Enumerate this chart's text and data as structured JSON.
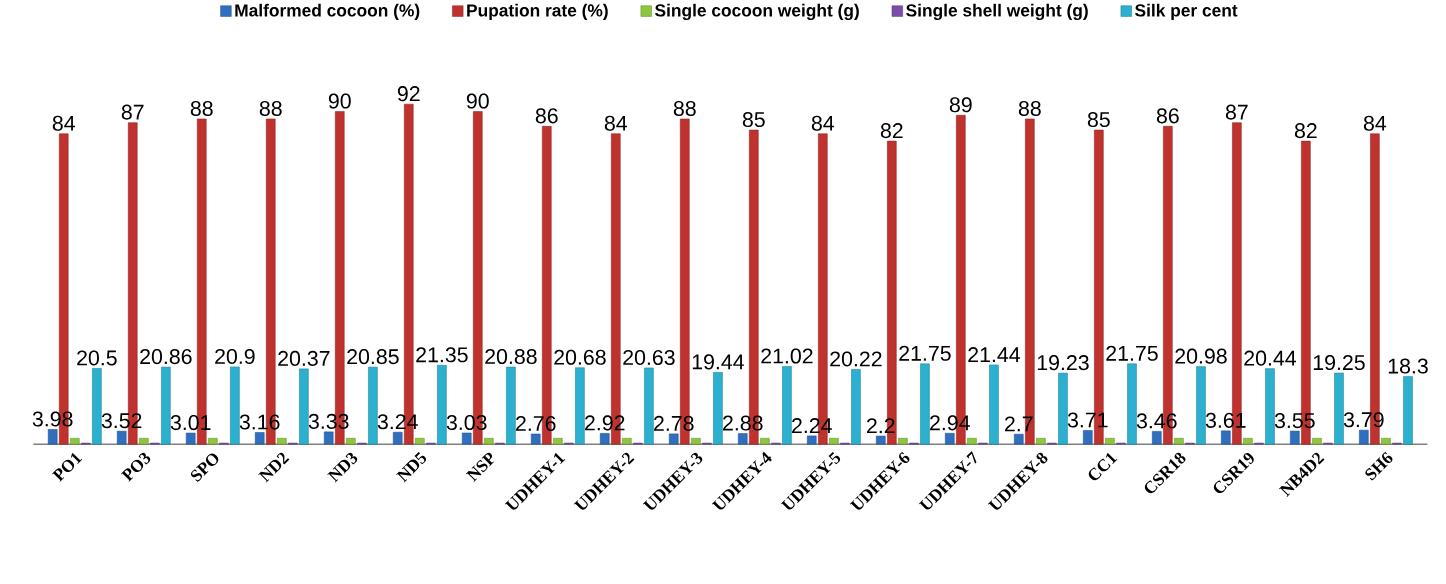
{
  "chart_data": {
    "type": "bar",
    "categories": [
      "PO1",
      "PO3",
      "SPO",
      "ND2",
      "ND3",
      "ND5",
      "NSP",
      "UDHEY-1",
      "UDHEY-2",
      "UDHEY-3",
      "UDHEY-4",
      "UDHEY-5",
      "UDHEY-6",
      "UDHEY-7",
      "UDHEY-8",
      "CC1",
      "CSR18",
      "CSR19",
      "NB4D2",
      "SH6"
    ],
    "series": [
      {
        "name": "Malformed cocoon (%)",
        "color": "#2f6fc0",
        "values": [
          3.98,
          3.52,
          3.01,
          3.16,
          3.33,
          3.24,
          3.03,
          2.76,
          2.92,
          2.78,
          2.88,
          2.24,
          2.2,
          2.94,
          2.7,
          3.71,
          3.46,
          3.61,
          3.55,
          3.79
        ],
        "value_labels": [
          "3.98",
          "3.52",
          "3.01",
          "3.16",
          "3.33",
          "3.24",
          "3.03",
          "2.76",
          "2.92",
          "2.78",
          "2.88",
          "2.24",
          "2.2",
          "2.94",
          "2.7",
          "3.71",
          "3.46",
          "3.61",
          "3.55",
          "3.79"
        ]
      },
      {
        "name": "Pupation rate (%)",
        "color": "#c0322e",
        "values": [
          84,
          87,
          88,
          88,
          90,
          92,
          90,
          86,
          84,
          88,
          85,
          84,
          82,
          89,
          88,
          85,
          86,
          87,
          82,
          84
        ],
        "value_labels": [
          "84",
          "87",
          "88",
          "88",
          "90",
          "92",
          "90",
          "86",
          "84",
          "88",
          "85",
          "84",
          "82",
          "89",
          "88",
          "85",
          "86",
          "87",
          "82",
          "84"
        ]
      },
      {
        "name": "Single cocoon weight (g)",
        "color": "#8dc63f",
        "values": [
          1.6,
          1.6,
          1.6,
          1.6,
          1.6,
          1.6,
          1.6,
          1.6,
          1.6,
          1.6,
          1.6,
          1.6,
          1.6,
          1.6,
          1.6,
          1.6,
          1.6,
          1.6,
          1.6,
          1.6
        ]
      },
      {
        "name": "Single shell weight (g)",
        "color": "#7b4fa8",
        "values": [
          0.3,
          0.3,
          0.3,
          0.3,
          0.3,
          0.3,
          0.3,
          0.3,
          0.3,
          0.3,
          0.3,
          0.3,
          0.3,
          0.3,
          0.3,
          0.3,
          0.3,
          0.3,
          0.3,
          0.3
        ]
      },
      {
        "name": "Silk per cent",
        "color": "#2bb0d0",
        "values": [
          20.5,
          20.86,
          20.9,
          20.37,
          20.85,
          21.35,
          20.88,
          20.68,
          20.63,
          19.44,
          21.02,
          20.22,
          21.75,
          21.44,
          19.23,
          21.75,
          20.98,
          20.44,
          19.25,
          18.3
        ],
        "value_labels": [
          "20.5",
          "20.86",
          "20.9",
          "20.37",
          "20.85",
          "21.35",
          "20.88",
          "20.68",
          "20.63",
          "19.44",
          "21.02",
          "20.22",
          "21.75",
          "21.44",
          "19.23",
          "21.75",
          "20.98",
          "20.44",
          "19.25",
          "18.3"
        ]
      }
    ],
    "legend": "top",
    "tick_labels": "x",
    "grid": false
  }
}
